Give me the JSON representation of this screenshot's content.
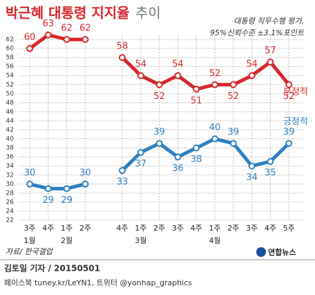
{
  "chart_data": {
    "type": "line",
    "title": "박근혜 대통령 지지율",
    "title_suffix": "추이",
    "subtitle": [
      "대통령 직무수행 평가,",
      "95%신뢰수준 ±3.1%포인트"
    ],
    "source": "자료/ 한국갤럽",
    "categories": [
      "3주",
      "4주",
      "1주",
      "2주",
      null,
      "4주",
      "1주",
      "2주",
      "3주",
      "4주",
      "1주",
      "2주",
      "3주",
      "4주",
      "5주"
    ],
    "category_groups": [
      "1월",
      "2월",
      "3월",
      "4월"
    ],
    "series": [
      {
        "name": "부정적",
        "color": "#d7262b",
        "values": [
          60,
          63,
          62,
          62,
          null,
          58,
          54,
          52,
          54,
          51,
          52,
          52,
          54,
          57,
          52
        ]
      },
      {
        "name": "긍정적",
        "color": "#2f7fc1",
        "values": [
          30,
          29,
          29,
          30,
          null,
          33,
          37,
          39,
          36,
          38,
          40,
          39,
          34,
          35,
          39
        ]
      }
    ],
    "ylim": [
      22,
      62
    ],
    "yticks": [
      22,
      24,
      26,
      28,
      30,
      32,
      34,
      36,
      38,
      40,
      42,
      44,
      46,
      48,
      50,
      52,
      54,
      56,
      58,
      60,
      62
    ],
    "grid": true
  },
  "footer": {
    "byline": "김토일 기자 / 20150501",
    "social": "페이스북 tuney.kr/LeYN1, 트위터 @yonhap_graphics",
    "logo": "연합뉴스"
  }
}
